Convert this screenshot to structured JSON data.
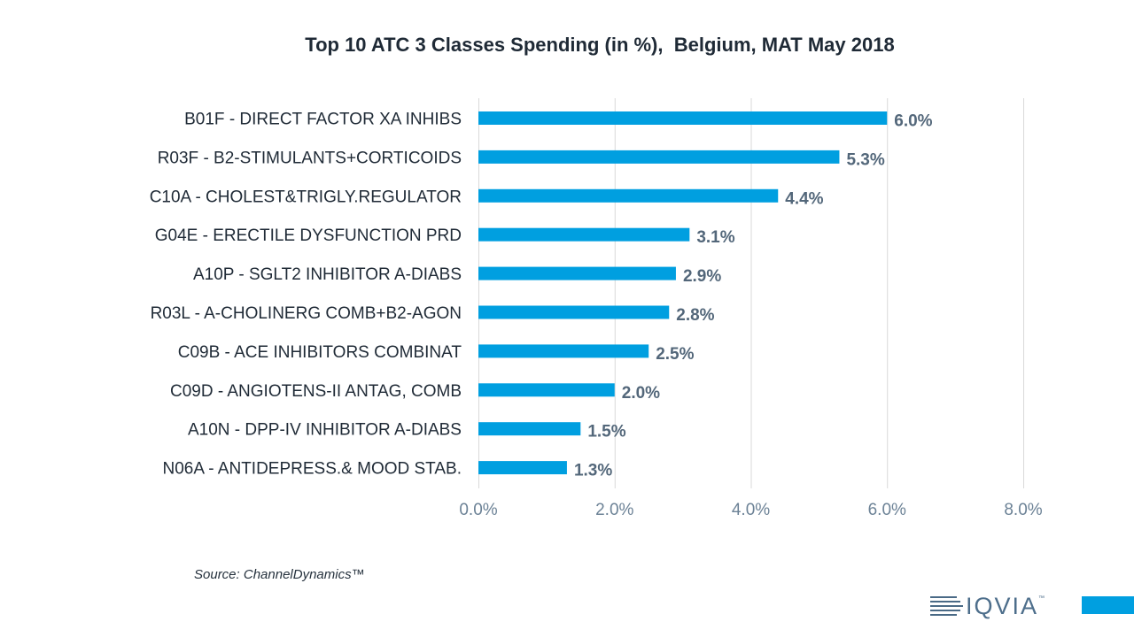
{
  "chart_data": {
    "type": "bar",
    "orientation": "horizontal",
    "title": "Top 10 ATC 3 Classes Spending (in %),  Belgium, MAT May 2018",
    "categories": [
      "B01F - DIRECT FACTOR XA INHIBS",
      "R03F - B2-STIMULANTS+CORTICOIDS",
      "C10A - CHOLEST&TRIGLY.REGULATOR",
      "G04E - ERECTILE DYSFUNCTION PRD",
      "A10P - SGLT2 INHIBITOR A-DIABS",
      "R03L - A-CHOLINERG COMB+B2-AGON",
      "C09B - ACE INHIBITORS COMBINAT",
      "C09D - ANGIOTENS-II ANTAG, COMB",
      "A10N - DPP-IV INHIBITOR A-DIABS",
      "N06A - ANTIDEPRESS.& MOOD STAB."
    ],
    "values": [
      6.0,
      5.3,
      4.4,
      3.1,
      2.9,
      2.8,
      2.5,
      2.0,
      1.5,
      1.3
    ],
    "data_labels": [
      "6.0%",
      "5.3%",
      "4.4%",
      "3.1%",
      "2.9%",
      "2.8%",
      "2.5%",
      "2.0%",
      "1.5%",
      "1.3%"
    ],
    "xlim": [
      0,
      8
    ],
    "x_ticks": [
      0,
      2,
      4,
      6,
      8
    ],
    "x_tick_labels": [
      "0.0%",
      "2.0%",
      "4.0%",
      "6.0%",
      "8.0%"
    ],
    "xlabel": "",
    "ylabel": "",
    "grid": "vertical",
    "legend": "none",
    "colors": {
      "bar": "#009fe0",
      "grid": "#d9d9d9",
      "category_label": "#1f2a36",
      "data_label": "#53677a",
      "tick_label": "#6c8296"
    }
  },
  "source": "Source: ChannelDynamics™",
  "brand": {
    "name": "IQVIA",
    "trademark": "™",
    "accent_color": "#009fe0",
    "text_color": "#4d6e8b"
  }
}
